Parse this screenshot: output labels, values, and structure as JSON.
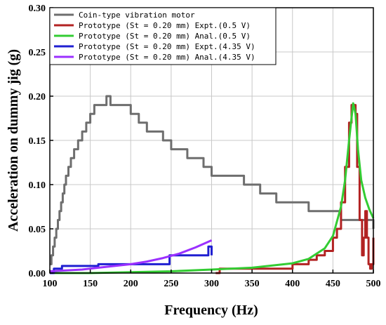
{
  "chart_data": {
    "type": "line",
    "title": "",
    "xlabel": "Frequency (Hz)",
    "ylabel": "Acceleration on dummy jig (g)",
    "xlim": [
      100,
      500
    ],
    "ylim": [
      0,
      0.3
    ],
    "x_ticks": [
      "100",
      "150",
      "200",
      "250",
      "300",
      "350",
      "400",
      "450",
      "500"
    ],
    "y_ticks": [
      "0.00",
      "0.05",
      "0.10",
      "0.15",
      "0.20",
      "0.25",
      "0.30"
    ],
    "grid": true,
    "legend_position": "top",
    "series": [
      {
        "name": "Coin-type vibration motor",
        "color": "#6e6e6e",
        "step": true,
        "x": [
          100,
          102,
          104,
          106,
          108,
          110,
          112,
          114,
          116,
          118,
          120,
          123,
          126,
          130,
          135,
          140,
          145,
          150,
          155,
          160,
          165,
          170,
          175,
          180,
          190,
          200,
          210,
          220,
          230,
          240,
          250,
          260,
          270,
          280,
          290,
          300,
          320,
          340,
          360,
          380,
          400,
          420,
          440,
          460,
          480,
          500
        ],
        "y": [
          0.01,
          0.02,
          0.03,
          0.04,
          0.05,
          0.06,
          0.07,
          0.08,
          0.09,
          0.1,
          0.11,
          0.12,
          0.13,
          0.14,
          0.15,
          0.16,
          0.17,
          0.18,
          0.19,
          0.19,
          0.19,
          0.2,
          0.19,
          0.19,
          0.19,
          0.18,
          0.17,
          0.16,
          0.16,
          0.15,
          0.14,
          0.14,
          0.13,
          0.13,
          0.12,
          0.11,
          0.11,
          0.1,
          0.09,
          0.08,
          0.08,
          0.07,
          0.07,
          0.06,
          0.06,
          0.05
        ]
      },
      {
        "name": "Prototype (St = 0.20 mm) Expt.(0.5 V)",
        "color": "#b22222",
        "step": true,
        "x": [
          305,
          310,
          320,
          330,
          340,
          350,
          360,
          370,
          380,
          390,
          400,
          410,
          420,
          430,
          440,
          450,
          455,
          460,
          465,
          470,
          473,
          476,
          478,
          480,
          483,
          486,
          488,
          490,
          492,
          494,
          496,
          498,
          500
        ],
        "y": [
          0.0,
          0.005,
          0.005,
          0.005,
          0.005,
          0.005,
          0.005,
          0.005,
          0.005,
          0.005,
          0.01,
          0.01,
          0.015,
          0.02,
          0.025,
          0.04,
          0.05,
          0.08,
          0.12,
          0.17,
          0.19,
          0.19,
          0.18,
          0.12,
          0.06,
          0.02,
          0.04,
          0.07,
          0.04,
          0.01,
          0.005,
          0.01,
          0.04
        ]
      },
      {
        "name": "Prototype (St = 0.20 mm) Anal.(0.5 V)",
        "color": "#33cc33",
        "step": false,
        "x": [
          100,
          150,
          200,
          250,
          300,
          350,
          400,
          420,
          440,
          450,
          460,
          465,
          470,
          475,
          478,
          481,
          485,
          490,
          495,
          500
        ],
        "y": [
          0.0,
          0.0,
          0.001,
          0.002,
          0.004,
          0.006,
          0.011,
          0.016,
          0.028,
          0.042,
          0.075,
          0.105,
          0.15,
          0.192,
          0.18,
          0.14,
          0.105,
          0.085,
          0.072,
          0.062
        ]
      },
      {
        "name": "Prototype (St = 0.20 mm) Expt.(4.35 V)",
        "color": "#1f1fd1",
        "step": true,
        "x": [
          100,
          105,
          110,
          115,
          120,
          125,
          130,
          140,
          150,
          160,
          170,
          180,
          190,
          200,
          210,
          220,
          230,
          240,
          248,
          250,
          260,
          270,
          280,
          290,
          296,
          298,
          300
        ],
        "y": [
          0.0,
          0.005,
          0.005,
          0.008,
          0.008,
          0.008,
          0.008,
          0.008,
          0.008,
          0.01,
          0.01,
          0.01,
          0.01,
          0.01,
          0.01,
          0.01,
          0.01,
          0.01,
          0.02,
          0.02,
          0.02,
          0.02,
          0.02,
          0.02,
          0.03,
          0.03,
          0.02
        ]
      },
      {
        "name": "Prototype (St = 0.20 mm) Anal.(4.35 V)",
        "color": "#9b30ff",
        "step": false,
        "x": [
          100,
          120,
          140,
          160,
          180,
          200,
          220,
          240,
          260,
          280,
          300
        ],
        "y": [
          0.002,
          0.003,
          0.004,
          0.006,
          0.008,
          0.01,
          0.013,
          0.017,
          0.022,
          0.029,
          0.037
        ]
      }
    ]
  }
}
